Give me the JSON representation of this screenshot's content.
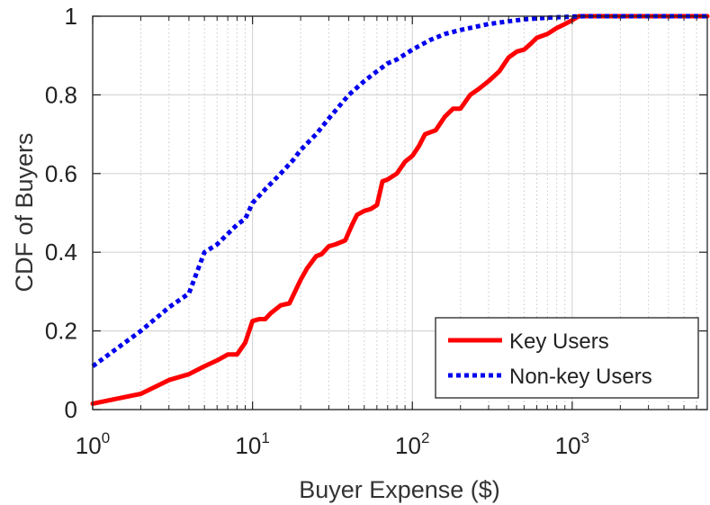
{
  "chart_data": {
    "type": "line",
    "title": "",
    "xlabel": "Buyer Expense ($)",
    "ylabel": "CDF of Buyers",
    "xscale": "log",
    "xlim": [
      1,
      7000
    ],
    "ylim": [
      0,
      1
    ],
    "grid": true,
    "legend_position": "bottom-right",
    "x_ticks": [
      {
        "base": "10",
        "exp": "0",
        "value": 1
      },
      {
        "base": "10",
        "exp": "1",
        "value": 10
      },
      {
        "base": "10",
        "exp": "2",
        "value": 100
      },
      {
        "base": "10",
        "exp": "3",
        "value": 1000
      }
    ],
    "y_ticks": [
      {
        "label": "0",
        "value": 0
      },
      {
        "label": "0.2",
        "value": 0.2
      },
      {
        "label": "0.4",
        "value": 0.4
      },
      {
        "label": "0.6",
        "value": 0.6
      },
      {
        "label": "0.8",
        "value": 0.8
      },
      {
        "label": "1",
        "value": 1
      }
    ],
    "series": [
      {
        "name": "Key Users",
        "color": "#ff0000",
        "style": "solid",
        "points": [
          [
            1,
            0.015
          ],
          [
            2,
            0.04
          ],
          [
            3,
            0.075
          ],
          [
            4,
            0.09
          ],
          [
            5,
            0.11
          ],
          [
            6,
            0.125
          ],
          [
            7,
            0.14
          ],
          [
            8,
            0.14
          ],
          [
            9,
            0.17
          ],
          [
            10,
            0.225
          ],
          [
            11,
            0.23
          ],
          [
            12,
            0.23
          ],
          [
            13,
            0.245
          ],
          [
            15,
            0.265
          ],
          [
            17,
            0.27
          ],
          [
            20,
            0.33
          ],
          [
            22,
            0.36
          ],
          [
            25,
            0.39
          ],
          [
            27,
            0.395
          ],
          [
            30,
            0.415
          ],
          [
            33,
            0.42
          ],
          [
            38,
            0.43
          ],
          [
            42,
            0.47
          ],
          [
            45,
            0.495
          ],
          [
            50,
            0.505
          ],
          [
            55,
            0.51
          ],
          [
            60,
            0.52
          ],
          [
            65,
            0.58
          ],
          [
            70,
            0.585
          ],
          [
            80,
            0.6
          ],
          [
            90,
            0.63
          ],
          [
            100,
            0.645
          ],
          [
            110,
            0.67
          ],
          [
            120,
            0.7
          ],
          [
            140,
            0.71
          ],
          [
            160,
            0.745
          ],
          [
            180,
            0.765
          ],
          [
            200,
            0.765
          ],
          [
            230,
            0.8
          ],
          [
            260,
            0.815
          ],
          [
            300,
            0.835
          ],
          [
            350,
            0.86
          ],
          [
            400,
            0.895
          ],
          [
            450,
            0.91
          ],
          [
            500,
            0.915
          ],
          [
            550,
            0.93
          ],
          [
            600,
            0.945
          ],
          [
            700,
            0.955
          ],
          [
            800,
            0.97
          ],
          [
            900,
            0.98
          ],
          [
            1000,
            0.99
          ],
          [
            1100,
            1.0
          ],
          [
            7000,
            1.0
          ]
        ]
      },
      {
        "name": "Non-key Users",
        "color": "#0000ee",
        "style": "dotted",
        "points": [
          [
            1,
            0.11
          ],
          [
            2,
            0.2
          ],
          [
            3,
            0.26
          ],
          [
            4,
            0.295
          ],
          [
            5,
            0.4
          ],
          [
            6,
            0.42
          ],
          [
            8,
            0.47
          ],
          [
            9,
            0.485
          ],
          [
            10,
            0.525
          ],
          [
            12,
            0.56
          ],
          [
            15,
            0.6
          ],
          [
            18,
            0.635
          ],
          [
            20,
            0.66
          ],
          [
            25,
            0.7
          ],
          [
            30,
            0.74
          ],
          [
            40,
            0.8
          ],
          [
            50,
            0.835
          ],
          [
            60,
            0.86
          ],
          [
            70,
            0.88
          ],
          [
            80,
            0.89
          ],
          [
            100,
            0.915
          ],
          [
            130,
            0.94
          ],
          [
            160,
            0.955
          ],
          [
            200,
            0.965
          ],
          [
            300,
            0.98
          ],
          [
            400,
            0.987
          ],
          [
            500,
            0.992
          ],
          [
            700,
            0.996
          ],
          [
            1000,
            0.999
          ],
          [
            1200,
            1.0
          ],
          [
            7000,
            1.0
          ]
        ]
      }
    ]
  }
}
